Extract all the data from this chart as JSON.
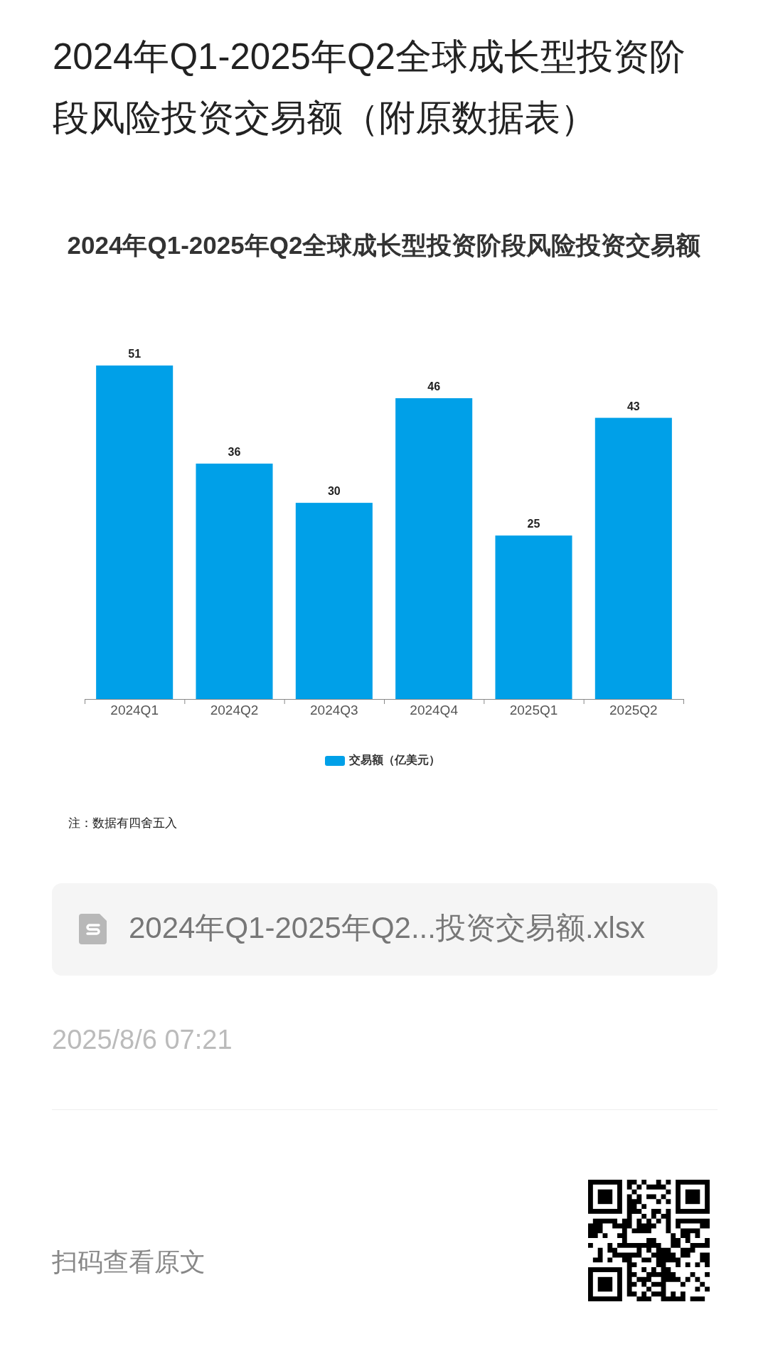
{
  "chart_data": {
    "type": "bar",
    "title": "2024年Q1-2025年Q2全球成长型投资阶段风险投资交易额（附原数据表）",
    "subtitle": "2024年Q1-2025年Q2全球成长型投资阶段风险投资交易额",
    "categories": [
      "2024Q1",
      "2024Q2",
      "2024Q3",
      "2024Q4",
      "2025Q1",
      "2025Q2"
    ],
    "series": [
      {
        "name": "交易额（亿美元）",
        "color": "#00a0e8",
        "values": [
          51,
          36,
          30,
          46,
          25,
          43
        ]
      }
    ],
    "data_labels": true,
    "legend": "bottom",
    "annotations": [
      "注：数据有四舍五入",
      "2024年Q1-2025年Q2...投资交易额.xlsx",
      "2025/8/6 07:21",
      "扫码查看原文"
    ]
  }
}
